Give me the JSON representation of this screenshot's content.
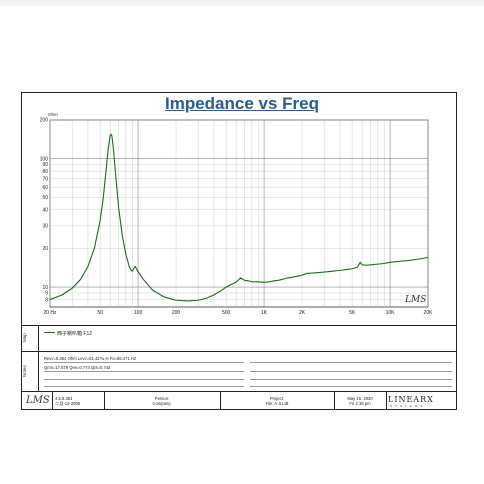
{
  "chart_data": {
    "type": "line",
    "title": "Impedance vs Freq",
    "ylabel": "Ohm",
    "xscale": "log",
    "yscale": "log",
    "xlim": [
      20,
      20000
    ],
    "ylim": [
      7,
      200
    ],
    "x_ticks": [
      {
        "v": 20,
        "label": "20 Hz"
      },
      {
        "v": 50,
        "label": "50"
      },
      {
        "v": 100,
        "label": "100"
      },
      {
        "v": 200,
        "label": "200"
      },
      {
        "v": 500,
        "label": "500"
      },
      {
        "v": 1000,
        "label": "1K"
      },
      {
        "v": 2000,
        "label": "2K"
      },
      {
        "v": 5000,
        "label": "5K"
      },
      {
        "v": 10000,
        "label": "10K"
      },
      {
        "v": 20000,
        "label": "20K"
      }
    ],
    "y_ticks": [
      {
        "v": 200,
        "label": "200"
      },
      {
        "v": 100,
        "label": "100"
      },
      {
        "v": 90,
        "label": "90"
      },
      {
        "v": 80,
        "label": "80"
      },
      {
        "v": 70,
        "label": "70"
      },
      {
        "v": 60,
        "label": "60"
      },
      {
        "v": 50,
        "label": "50"
      },
      {
        "v": 40,
        "label": "40"
      },
      {
        "v": 30,
        "label": "30"
      },
      {
        "v": 20,
        "label": "20"
      },
      {
        "v": 10,
        "label": "10"
      },
      {
        "v": 9,
        "label": "9"
      },
      {
        "v": 8,
        "label": "8"
      }
    ],
    "grid": true,
    "series": [
      {
        "name": "西子喇叭箱 F12",
        "color": "#1a6b1a",
        "x": [
          20,
          25,
          30,
          35,
          40,
          45,
          50,
          53,
          56,
          58,
          60,
          61,
          62,
          64,
          66,
          70,
          75,
          80,
          85,
          88,
          90,
          92,
          95,
          100,
          110,
          130,
          160,
          200,
          250,
          300,
          350,
          400,
          450,
          500,
          550,
          600,
          650,
          700,
          750,
          800,
          900,
          1000,
          1100,
          1200,
          1300,
          1500,
          1800,
          2000,
          2200,
          2500,
          3000,
          3500,
          4000,
          4500,
          5000,
          5500,
          5800,
          6000,
          6500,
          7000,
          8000,
          9000,
          10000,
          12000,
          14000,
          16000,
          18000,
          20000
        ],
        "values": [
          8.0,
          8.7,
          9.8,
          11.5,
          14.5,
          20,
          33,
          50,
          85,
          120,
          150,
          155,
          150,
          115,
          80,
          42,
          25,
          18,
          14.5,
          13.5,
          13.3,
          13.8,
          14.5,
          13.2,
          11.5,
          9.5,
          8.4,
          7.9,
          7.8,
          7.9,
          8.2,
          8.7,
          9.3,
          10.0,
          10.5,
          10.9,
          11.8,
          11.3,
          11.2,
          11.0,
          11.0,
          10.9,
          11.0,
          11.2,
          11.3,
          11.7,
          12.1,
          12.4,
          12.8,
          12.9,
          13.1,
          13.3,
          13.5,
          13.7,
          13.9,
          14.3,
          15.6,
          14.9,
          14.8,
          14.9,
          15.1,
          15.3,
          15.6,
          15.9,
          16.1,
          16.4,
          16.7,
          17.0
        ]
      }
    ]
  },
  "panels": {
    "map_label": "Map",
    "notes_label": "Notes",
    "legend_label": "西子喇叭箱 F12",
    "notes_line1": "Revc=5.354 Ohm  Levc=51.42?u H  Fo=59.471 Hz",
    "notes_line2": "Qms=17.679  Qes=0.774  Qts=0.742"
  },
  "footer": {
    "version": "4.5.8.351",
    "version_date": "二月-12-2005",
    "person": "Person:",
    "company": "Company:",
    "project": "Project:",
    "file": "File: A-3.LIB",
    "date": "May 16, 2020",
    "time": "Fri 2:35 pm",
    "brand": "LINEARX",
    "brand_sub": "SYSTEMS",
    "logo_text": "LMS",
    "plot_logo": "LMS"
  }
}
